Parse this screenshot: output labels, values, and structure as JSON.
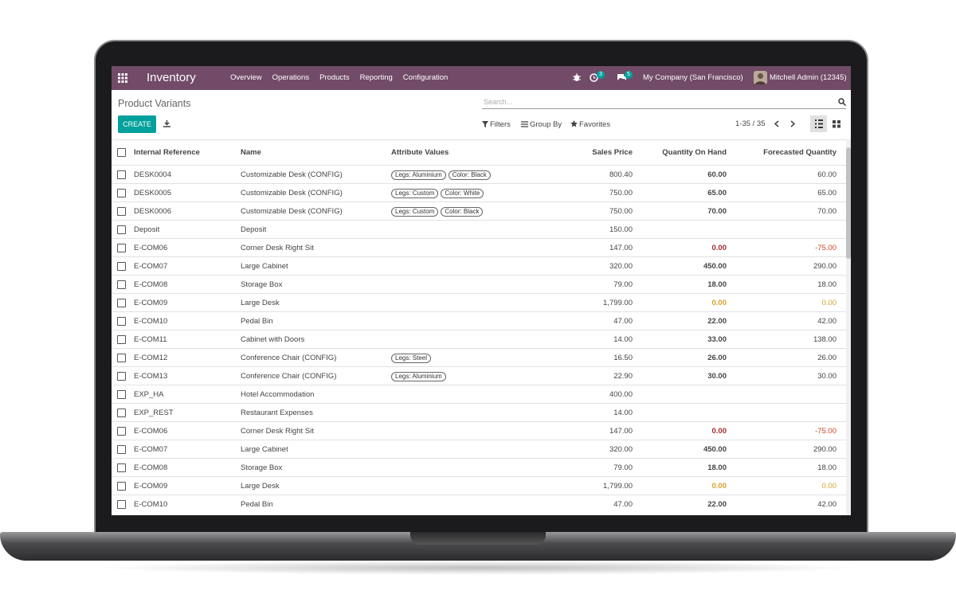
{
  "navbar": {
    "app": "Inventory",
    "menus": [
      "Overview",
      "Operations",
      "Products",
      "Reporting",
      "Configuration"
    ],
    "activity_count": "3",
    "message_count": "5",
    "company": "My Company (San Francisco)",
    "user": "Mitchell Admin (12345)"
  },
  "control_panel": {
    "title": "Product Variants",
    "search_placeholder": "Search...",
    "create": "CREATE",
    "filters": "Filters",
    "group_by": "Group By",
    "favorites": "Favorites",
    "pager": "1-35 / 35"
  },
  "table": {
    "columns": [
      "Internal Reference",
      "Name",
      "Attribute Values",
      "Sales Price",
      "Quantity On Hand",
      "Forecasted Quantity"
    ],
    "rows": [
      {
        "ref": "DESK0004",
        "name": "Customizable Desk (CONFIG)",
        "attributes": [
          "Legs: Aluminium",
          "Color: Black"
        ],
        "price": "800.40",
        "on_hand": "60.00",
        "forecast": "60.00"
      },
      {
        "ref": "DESK0005",
        "name": "Customizable Desk (CONFIG)",
        "attributes": [
          "Legs: Custom",
          "Color: White"
        ],
        "price": "750.00",
        "on_hand": "65.00",
        "forecast": "65.00"
      },
      {
        "ref": "DESK0006",
        "name": "Customizable Desk (CONFIG)",
        "attributes": [
          "Legs: Custom",
          "Color: Black"
        ],
        "price": "750.00",
        "on_hand": "70.00",
        "forecast": "70.00"
      },
      {
        "ref": "Deposit",
        "name": "Deposit",
        "attributes": [],
        "price": "150.00",
        "on_hand": null,
        "forecast": null
      },
      {
        "ref": "E-COM06",
        "name": "Corner Desk Right Sit",
        "attributes": [],
        "price": "147.00",
        "on_hand": "0.00",
        "forecast": "-75.00"
      },
      {
        "ref": "E-COM07",
        "name": "Large Cabinet",
        "attributes": [],
        "price": "320.00",
        "on_hand": "450.00",
        "forecast": "290.00"
      },
      {
        "ref": "E-COM08",
        "name": "Storage Box",
        "attributes": [],
        "price": "79.00",
        "on_hand": "18.00",
        "forecast": "18.00"
      },
      {
        "ref": "E-COM09",
        "name": "Large Desk",
        "attributes": [],
        "price": "1,799.00",
        "on_hand": "0.00",
        "forecast": "0.00"
      },
      {
        "ref": "E-COM10",
        "name": "Pedal Bin",
        "attributes": [],
        "price": "47.00",
        "on_hand": "22.00",
        "forecast": "42.00"
      },
      {
        "ref": "E-COM11",
        "name": "Cabinet with Doors",
        "attributes": [],
        "price": "14.00",
        "on_hand": "33.00",
        "forecast": "138.00"
      },
      {
        "ref": "E-COM12",
        "name": "Conference Chair (CONFIG)",
        "attributes": [
          "Legs: Steel"
        ],
        "price": "16.50",
        "on_hand": "26.00",
        "forecast": "26.00"
      },
      {
        "ref": "E-COM13",
        "name": "Conference Chair (CONFIG)",
        "attributes": [
          "Legs: Aluminium"
        ],
        "price": "22.90",
        "on_hand": "30.00",
        "forecast": "30.00"
      },
      {
        "ref": "EXP_HA",
        "name": "Hotel Accommodation",
        "attributes": [],
        "price": "400.00",
        "on_hand": null,
        "forecast": null
      },
      {
        "ref": "EXP_REST",
        "name": "Restaurant Expenses",
        "attributes": [],
        "price": "14.00",
        "on_hand": null,
        "forecast": null
      },
      {
        "ref": "E-COM06",
        "name": "Corner Desk Right Sit",
        "attributes": [],
        "price": "147.00",
        "on_hand": "0.00",
        "forecast": "-75.00"
      },
      {
        "ref": "E-COM07",
        "name": "Large Cabinet",
        "attributes": [],
        "price": "320.00",
        "on_hand": "450.00",
        "forecast": "290.00"
      },
      {
        "ref": "E-COM08",
        "name": "Storage Box",
        "attributes": [],
        "price": "79.00",
        "on_hand": "18.00",
        "forecast": "18.00"
      },
      {
        "ref": "E-COM09",
        "name": "Large Desk",
        "attributes": [],
        "price": "1,799.00",
        "on_hand": "0.00",
        "forecast": "0.00"
      },
      {
        "ref": "E-COM10",
        "name": "Pedal Bin",
        "attributes": [],
        "price": "47.00",
        "on_hand": "22.00",
        "forecast": "42.00"
      }
    ]
  }
}
